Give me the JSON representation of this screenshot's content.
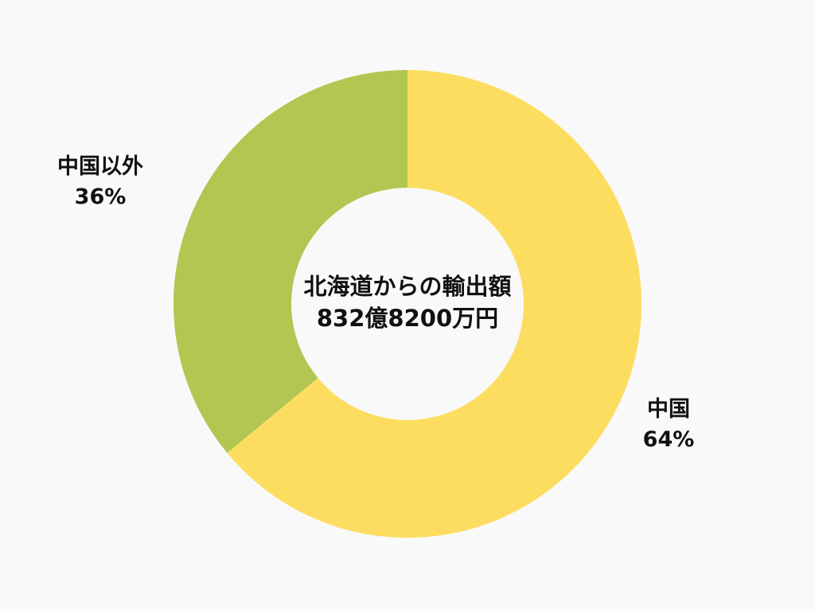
{
  "chart_data": {
    "type": "pie",
    "style": "donut",
    "center_title": "北海道からの輸出額",
    "center_value": "832億8200万円",
    "slices": [
      {
        "name": "中国",
        "value": 64,
        "label": "64%",
        "color": "#fddd60"
      },
      {
        "name": "中国以外",
        "value": 36,
        "label": "36%",
        "color": "#b2c651"
      }
    ],
    "start_angle": "12 o'clock",
    "direction": "clockwise",
    "background": "#f9f9f9"
  }
}
